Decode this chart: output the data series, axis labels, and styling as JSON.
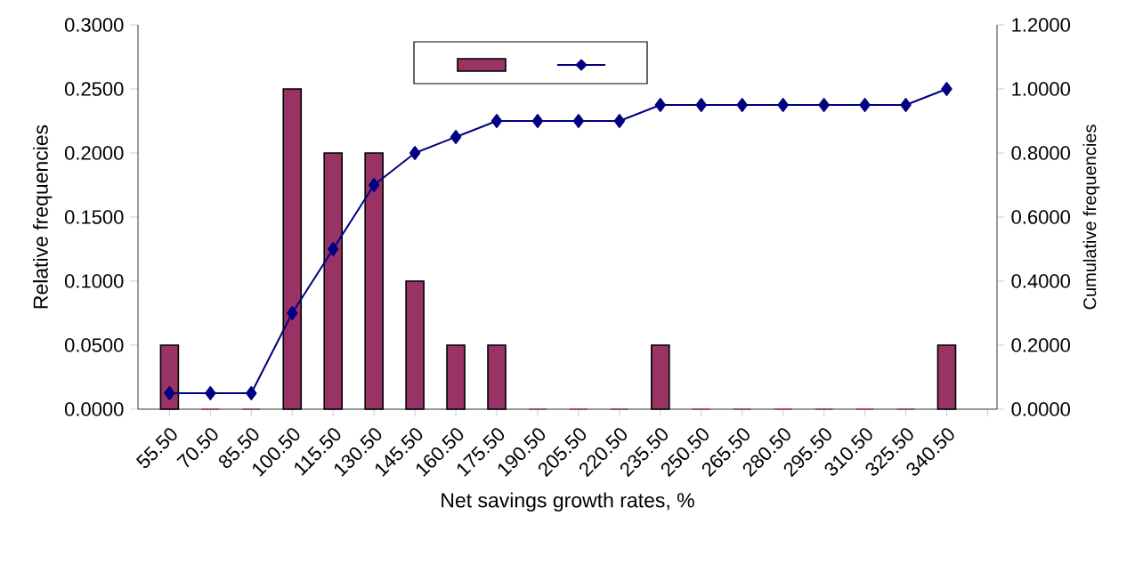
{
  "chart_data": {
    "type": "bar",
    "xlabel": "Net savings growth rates, %",
    "ylabel": "Relative frequencies",
    "y2label": "Cumulative frequencies",
    "categories": [
      "55.50",
      "70.50",
      "85.50",
      "100.50",
      "115.50",
      "130.50",
      "145.50",
      "160.50",
      "175.50",
      "190.50",
      "205.50",
      "220.50",
      "235.50",
      "250.50",
      "265.50",
      "280.50",
      "295.50",
      "310.50",
      "325.50",
      "340.50",
      null
    ],
    "series": [
      {
        "color": "#993366",
        "values": [
          0.05,
          0,
          0,
          0.25,
          0.2,
          0.2,
          0.1,
          0.05,
          0.05,
          0,
          0,
          0,
          0.05,
          0,
          0,
          0,
          0,
          0,
          0,
          0.05,
          null
        ]
      },
      {
        "type": "line",
        "axis": "y2",
        "color": "#000080",
        "values": [
          0.05,
          0.05,
          0.05,
          0.3,
          0.5,
          0.7,
          0.8,
          0.85,
          0.9,
          0.9,
          0.9,
          0.9,
          0.95,
          0.95,
          0.95,
          0.95,
          0.95,
          0.95,
          0.95,
          1.0,
          null
        ]
      }
    ],
    "ylim": [
      0,
      0.3
    ],
    "yticks": [
      {
        "value": 0,
        "label": "0.0000"
      },
      {
        "value": 0.05,
        "label": "0.0500"
      },
      {
        "value": 0.1,
        "label": "0.1000"
      },
      {
        "value": 0.15,
        "label": "0.1500"
      },
      {
        "value": 0.2,
        "label": "0.2000"
      },
      {
        "value": 0.25,
        "label": "0.2500"
      },
      {
        "value": 0.3,
        "label": "0.3000"
      }
    ],
    "y2lim": [
      0,
      1.2
    ],
    "y2ticks": [
      {
        "value": 0,
        "label": "0.0000"
      },
      {
        "value": 0.2,
        "label": "0.2000"
      },
      {
        "value": 0.4,
        "label": "0.4000"
      },
      {
        "value": 0.6,
        "label": "0.6000"
      },
      {
        "value": 0.8,
        "label": "0.8000"
      },
      {
        "value": 1.0,
        "label": "1.0000"
      },
      {
        "value": 1.2,
        "label": "1.2000"
      }
    ],
    "marker": "diamond",
    "line_style": "solid"
  }
}
